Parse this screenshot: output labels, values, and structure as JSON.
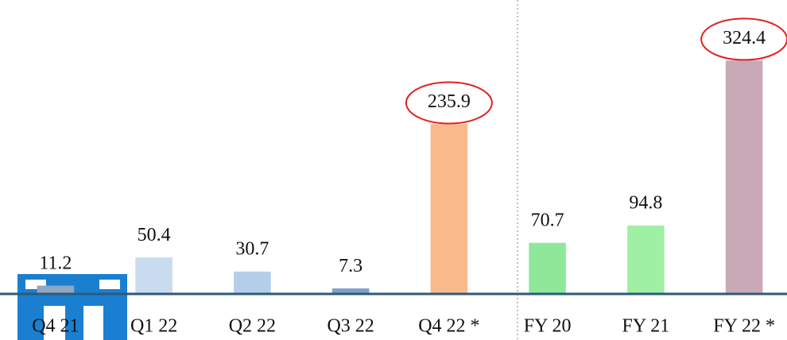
{
  "chart_data": {
    "type": "bar",
    "categories": [
      "Q4 21",
      "Q1 22",
      "Q2 22",
      "Q3 22",
      "Q4 22 *",
      "FY 20",
      "FY 21",
      "FY 22 *"
    ],
    "values": [
      11.2,
      50.4,
      30.7,
      7.3,
      235.9,
      70.7,
      94.8,
      324.4
    ],
    "colors": [
      "#8fa6c4",
      "#c9dcef",
      "#b4cde8",
      "#7f9fc8",
      "#f9b98a",
      "#8fe89a",
      "#9ff0a4",
      "#c9a9b6"
    ],
    "highlight": [
      false,
      false,
      false,
      false,
      true,
      false,
      false,
      true
    ],
    "highlight_color": "#e02020",
    "ylim": [
      0,
      400
    ]
  }
}
